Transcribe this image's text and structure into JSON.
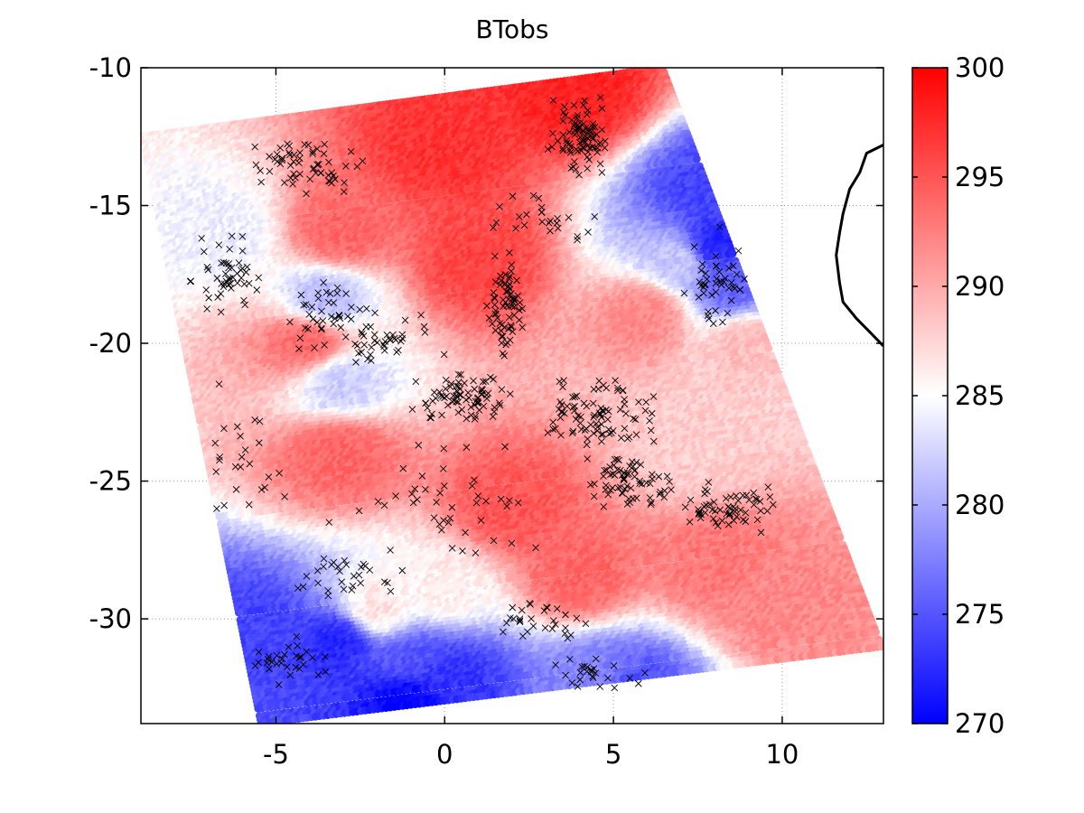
{
  "chart_data": {
    "type": "scatter",
    "title": "BTobs",
    "xlabel": "",
    "ylabel": "",
    "xlim": [
      -9,
      13
    ],
    "ylim": [
      -33.8,
      -10
    ],
    "x_ticks": [
      -5,
      0,
      5,
      10
    ],
    "y_ticks": [
      -10,
      -15,
      -20,
      -25,
      -30
    ],
    "grid": true,
    "grid_style": "dotted",
    "colormap": {
      "name": "blue-white-red",
      "colors": [
        "#0000ff",
        "#ffffff",
        "#ff0000"
      ],
      "range": [
        270,
        300
      ],
      "center": 285
    },
    "colorbar": {
      "placement": "right",
      "ticks": [
        300,
        295,
        290,
        285,
        280,
        275,
        270
      ]
    },
    "swath": {
      "corners": {
        "top_left": [
          -9.0,
          -12.5
        ],
        "top_right": [
          6.5,
          -10.0
        ],
        "bottom_right": [
          13.0,
          -31.0
        ],
        "bottom_left": [
          -5.5,
          -33.8
        ]
      },
      "scanlines": 12,
      "scanline_gap": 1
    },
    "value_regions": [
      {
        "x": 4.0,
        "y": -11.0,
        "value": 298
      },
      {
        "x": 0.0,
        "y": -13.0,
        "value": 297
      },
      {
        "x": -3.0,
        "y": -16.0,
        "value": 294
      },
      {
        "x": -4.0,
        "y": -20.0,
        "value": 294
      },
      {
        "x": -3.0,
        "y": -24.0,
        "value": 294
      },
      {
        "x": 1.0,
        "y": -17.0,
        "value": 296
      },
      {
        "x": 2.0,
        "y": -26.0,
        "value": 295
      },
      {
        "x": 4.0,
        "y": -28.5,
        "value": 294
      },
      {
        "x": 8.0,
        "y": -28.0,
        "value": 293
      },
      {
        "x": 10.0,
        "y": -29.5,
        "value": 292
      },
      {
        "x": 6.0,
        "y": -19.0,
        "value": 292
      },
      {
        "x": 7.5,
        "y": -24.0,
        "value": 288
      },
      {
        "x": 9.0,
        "y": -20.0,
        "value": 289
      },
      {
        "x": 7.8,
        "y": -14.5,
        "value": 274
      },
      {
        "x": 8.0,
        "y": -16.5,
        "value": 272
      },
      {
        "x": 8.6,
        "y": -18.0,
        "value": 276
      },
      {
        "x": 7.0,
        "y": -17.0,
        "value": 282
      },
      {
        "x": -3.5,
        "y": -18.5,
        "value": 281
      },
      {
        "x": -6.5,
        "y": -16.0,
        "value": 284
      },
      {
        "x": -3.0,
        "y": -21.5,
        "value": 282
      },
      {
        "x": 0.0,
        "y": -29.0,
        "value": 286
      },
      {
        "x": -3.0,
        "y": -30.8,
        "value": 272
      },
      {
        "x": -1.0,
        "y": -31.5,
        "value": 275
      },
      {
        "x": -1.0,
        "y": -33.0,
        "value": 270
      },
      {
        "x": 0.2,
        "y": -32.2,
        "value": 273
      },
      {
        "x": -5.5,
        "y": -30.5,
        "value": 274
      },
      {
        "x": 4.5,
        "y": -32.3,
        "value": 278
      },
      {
        "x": 5.5,
        "y": -32.7,
        "value": 274
      },
      {
        "x": -2.0,
        "y": -29.8,
        "value": 287
      }
    ],
    "cloud_flags": {
      "marker": "x",
      "color": "#000000",
      "clusters": [
        {
          "x": 4.0,
          "y": -12.5,
          "spread_x": 1.0,
          "spread_y": 1.5,
          "count": 90
        },
        {
          "x": 1.8,
          "y": -18.5,
          "spread_x": 0.6,
          "spread_y": 2.0,
          "count": 70
        },
        {
          "x": 0.5,
          "y": -22.0,
          "spread_x": 1.6,
          "spread_y": 1.0,
          "count": 80
        },
        {
          "x": 4.5,
          "y": -22.5,
          "spread_x": 1.8,
          "spread_y": 1.3,
          "count": 90
        },
        {
          "x": 5.5,
          "y": -25.0,
          "spread_x": 1.5,
          "spread_y": 1.0,
          "count": 70
        },
        {
          "x": 8.5,
          "y": -26.0,
          "spread_x": 1.6,
          "spread_y": 1.0,
          "count": 60
        },
        {
          "x": -4.0,
          "y": -13.5,
          "spread_x": 2.0,
          "spread_y": 1.2,
          "count": 60
        },
        {
          "x": -6.5,
          "y": -17.5,
          "spread_x": 1.3,
          "spread_y": 1.5,
          "count": 50
        },
        {
          "x": -3.5,
          "y": -19.0,
          "spread_x": 1.5,
          "spread_y": 1.5,
          "count": 45
        },
        {
          "x": -1.5,
          "y": -20.0,
          "spread_x": 1.5,
          "spread_y": 1.2,
          "count": 35
        },
        {
          "x": 8.0,
          "y": -17.5,
          "spread_x": 1.0,
          "spread_y": 2.0,
          "count": 45
        },
        {
          "x": 2.5,
          "y": -15.5,
          "spread_x": 2.0,
          "spread_y": 1.0,
          "count": 25
        },
        {
          "x": -3.0,
          "y": -28.5,
          "spread_x": 2.0,
          "spread_y": 0.8,
          "count": 30
        },
        {
          "x": 3.0,
          "y": -30.0,
          "spread_x": 1.5,
          "spread_y": 0.8,
          "count": 30
        },
        {
          "x": -4.5,
          "y": -31.5,
          "spread_x": 1.5,
          "spread_y": 1.0,
          "count": 30
        },
        {
          "x": 4.5,
          "y": -32.0,
          "spread_x": 1.5,
          "spread_y": 0.7,
          "count": 25
        },
        {
          "x": 0.0,
          "y": -25.5,
          "spread_x": 3.5,
          "spread_y": 2.5,
          "count": 45
        },
        {
          "x": -6.0,
          "y": -24.5,
          "spread_x": 1.5,
          "spread_y": 4.0,
          "count": 25
        }
      ]
    },
    "coastline": {
      "color": "#000000",
      "points": [
        [
          13.0,
          -12.8
        ],
        [
          12.5,
          -13.1
        ],
        [
          12.3,
          -13.8
        ],
        [
          12.0,
          -14.4
        ],
        [
          11.8,
          -15.3
        ],
        [
          11.7,
          -16.0
        ],
        [
          11.6,
          -16.8
        ],
        [
          11.7,
          -17.8
        ],
        [
          11.8,
          -18.5
        ],
        [
          12.2,
          -19.1
        ],
        [
          12.6,
          -19.6
        ],
        [
          13.0,
          -20.1
        ]
      ]
    }
  }
}
